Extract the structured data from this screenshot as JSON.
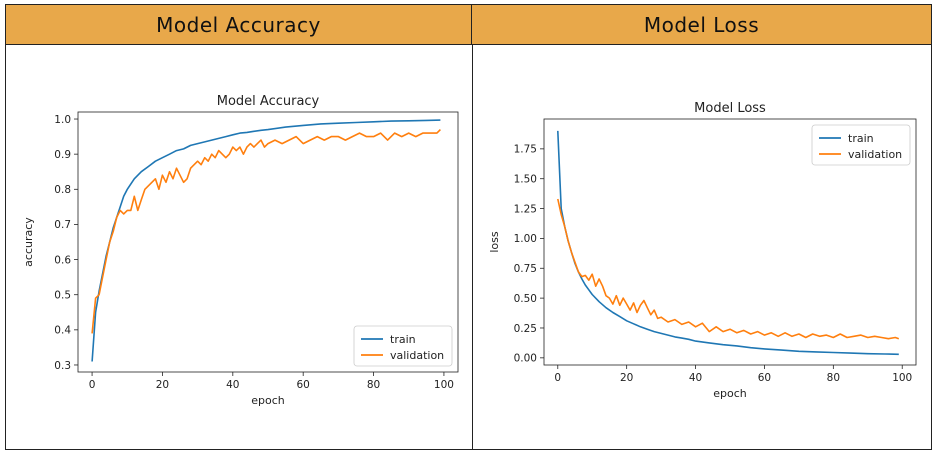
{
  "headers": {
    "left": "Model  Accuracy",
    "right": "Model  Loss"
  },
  "chart_data": [
    {
      "type": "line",
      "title": "Model Accuracy",
      "xlabel": "epoch",
      "ylabel": "accuracy",
      "xlim": [
        -4,
        104
      ],
      "ylim": [
        0.28,
        1.02
      ],
      "xticks": [
        0,
        20,
        40,
        60,
        80,
        100
      ],
      "yticks": [
        0.3,
        0.4,
        0.5,
        0.6,
        0.7,
        0.8,
        0.9,
        1.0
      ],
      "legend": "lower-right",
      "series": [
        {
          "name": "train",
          "color": "#1f77b4",
          "x": [
            0,
            1,
            2,
            3,
            4,
            5,
            6,
            7,
            8,
            9,
            10,
            12,
            14,
            16,
            18,
            20,
            22,
            24,
            26,
            28,
            30,
            32,
            34,
            36,
            38,
            40,
            42,
            44,
            46,
            48,
            50,
            55,
            60,
            65,
            70,
            75,
            80,
            85,
            90,
            95,
            99
          ],
          "y": [
            0.31,
            0.45,
            0.51,
            0.56,
            0.61,
            0.65,
            0.69,
            0.72,
            0.75,
            0.78,
            0.8,
            0.83,
            0.85,
            0.865,
            0.88,
            0.89,
            0.9,
            0.91,
            0.915,
            0.925,
            0.93,
            0.935,
            0.94,
            0.945,
            0.95,
            0.955,
            0.96,
            0.962,
            0.965,
            0.968,
            0.97,
            0.977,
            0.982,
            0.986,
            0.988,
            0.99,
            0.992,
            0.994,
            0.995,
            0.996,
            0.997
          ]
        },
        {
          "name": "validation",
          "color": "#ff7f0e",
          "x": [
            0,
            1,
            2,
            3,
            4,
            5,
            6,
            7,
            8,
            9,
            10,
            11,
            12,
            13,
            14,
            15,
            16,
            17,
            18,
            19,
            20,
            21,
            22,
            23,
            24,
            25,
            26,
            27,
            28,
            29,
            30,
            31,
            32,
            33,
            34,
            35,
            36,
            37,
            38,
            39,
            40,
            41,
            42,
            43,
            44,
            45,
            46,
            47,
            48,
            49,
            50,
            52,
            54,
            56,
            58,
            60,
            62,
            64,
            66,
            68,
            70,
            72,
            74,
            76,
            78,
            80,
            82,
            84,
            86,
            88,
            90,
            92,
            94,
            96,
            98,
            99
          ],
          "y": [
            0.39,
            0.49,
            0.5,
            0.55,
            0.6,
            0.65,
            0.68,
            0.72,
            0.74,
            0.73,
            0.74,
            0.74,
            0.78,
            0.74,
            0.77,
            0.8,
            0.81,
            0.82,
            0.83,
            0.8,
            0.84,
            0.82,
            0.85,
            0.83,
            0.86,
            0.84,
            0.82,
            0.83,
            0.86,
            0.87,
            0.88,
            0.87,
            0.89,
            0.88,
            0.9,
            0.89,
            0.91,
            0.9,
            0.89,
            0.9,
            0.92,
            0.91,
            0.92,
            0.9,
            0.92,
            0.93,
            0.92,
            0.93,
            0.94,
            0.92,
            0.93,
            0.94,
            0.93,
            0.94,
            0.95,
            0.93,
            0.94,
            0.95,
            0.94,
            0.95,
            0.95,
            0.94,
            0.95,
            0.96,
            0.95,
            0.95,
            0.96,
            0.94,
            0.96,
            0.95,
            0.96,
            0.95,
            0.96,
            0.96,
            0.96,
            0.97
          ]
        }
      ]
    },
    {
      "type": "line",
      "title": "Model Loss",
      "xlabel": "epoch",
      "ylabel": "loss",
      "xlim": [
        -4,
        104
      ],
      "ylim": [
        -0.06,
        2.0
      ],
      "xticks": [
        0,
        20,
        40,
        60,
        80,
        100
      ],
      "yticks": [
        0.0,
        0.25,
        0.5,
        0.75,
        1.0,
        1.25,
        1.5,
        1.75
      ],
      "ytick_labels": [
        "0.00",
        "0.25",
        "0.50",
        "0.75",
        "1.00",
        "1.25",
        "1.50",
        "1.75"
      ],
      "legend": "upper-right",
      "series": [
        {
          "name": "train",
          "color": "#1f77b4",
          "x": [
            0,
            1,
            2,
            3,
            4,
            5,
            6,
            7,
            8,
            9,
            10,
            12,
            14,
            16,
            18,
            20,
            22,
            24,
            26,
            28,
            30,
            32,
            34,
            36,
            38,
            40,
            44,
            48,
            52,
            56,
            60,
            65,
            70,
            75,
            80,
            85,
            90,
            95,
            99
          ],
          "y": [
            1.9,
            1.25,
            1.1,
            0.98,
            0.88,
            0.79,
            0.72,
            0.66,
            0.61,
            0.57,
            0.53,
            0.47,
            0.42,
            0.38,
            0.345,
            0.31,
            0.285,
            0.26,
            0.24,
            0.22,
            0.205,
            0.19,
            0.175,
            0.165,
            0.155,
            0.14,
            0.125,
            0.11,
            0.1,
            0.085,
            0.075,
            0.065,
            0.055,
            0.05,
            0.045,
            0.04,
            0.035,
            0.032,
            0.03
          ]
        },
        {
          "name": "validation",
          "color": "#ff7f0e",
          "x": [
            0,
            1,
            2,
            3,
            4,
            5,
            6,
            7,
            8,
            9,
            10,
            11,
            12,
            13,
            14,
            15,
            16,
            17,
            18,
            19,
            20,
            21,
            22,
            23,
            24,
            25,
            26,
            27,
            28,
            29,
            30,
            32,
            34,
            36,
            38,
            40,
            42,
            44,
            46,
            48,
            50,
            52,
            54,
            56,
            58,
            60,
            62,
            64,
            66,
            68,
            70,
            72,
            74,
            76,
            78,
            80,
            82,
            84,
            86,
            88,
            90,
            92,
            94,
            96,
            98,
            99
          ],
          "y": [
            1.33,
            1.2,
            1.1,
            0.98,
            0.88,
            0.8,
            0.72,
            0.68,
            0.69,
            0.65,
            0.7,
            0.6,
            0.66,
            0.6,
            0.52,
            0.5,
            0.45,
            0.52,
            0.44,
            0.5,
            0.45,
            0.4,
            0.46,
            0.38,
            0.44,
            0.48,
            0.42,
            0.36,
            0.4,
            0.33,
            0.34,
            0.3,
            0.32,
            0.28,
            0.3,
            0.26,
            0.29,
            0.22,
            0.26,
            0.22,
            0.24,
            0.21,
            0.23,
            0.2,
            0.22,
            0.19,
            0.21,
            0.18,
            0.21,
            0.18,
            0.2,
            0.17,
            0.2,
            0.18,
            0.19,
            0.17,
            0.2,
            0.17,
            0.18,
            0.19,
            0.17,
            0.18,
            0.17,
            0.16,
            0.17,
            0.16
          ]
        }
      ]
    }
  ]
}
